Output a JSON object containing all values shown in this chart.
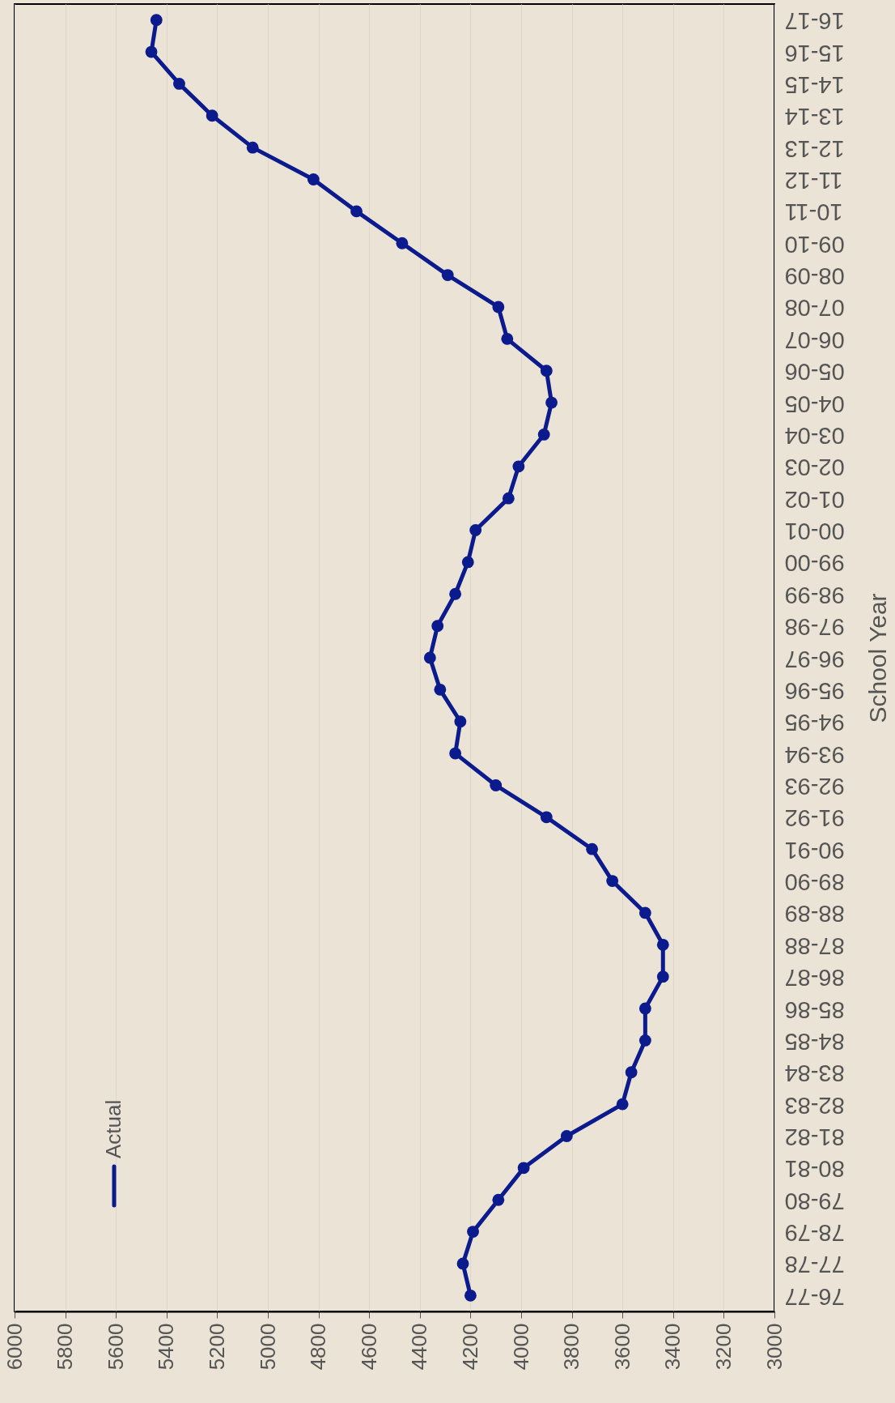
{
  "chart_data": {
    "type": "line",
    "orientation": "horizontal",
    "ylabel": "School Year",
    "categories": [
      "16-17",
      "15-16",
      "14-15",
      "13-14",
      "12-13",
      "11-12",
      "10-11",
      "09-10",
      "08-09",
      "07-08",
      "06-07",
      "05-06",
      "04-05",
      "03-04",
      "02-03",
      "01-02",
      "00-01",
      "99-00",
      "98-99",
      "97-98",
      "96-97",
      "95-96",
      "94-95",
      "93-94",
      "92-93",
      "91-92",
      "90-91",
      "89-90",
      "88-89",
      "87-88",
      "86-87",
      "85-86",
      "84-85",
      "83-84",
      "82-83",
      "81-82",
      "80-81",
      "79-80",
      "78-79",
      "77-78",
      "76-77"
    ],
    "series": [
      {
        "name": "Actual",
        "color": "#0b1a8c",
        "values": [
          5440,
          5460,
          5350,
          5220,
          5060,
          4820,
          4650,
          4470,
          4290,
          4090,
          4055,
          3900,
          3880,
          3910,
          4010,
          4050,
          4180,
          4210,
          4260,
          4330,
          4360,
          4320,
          4240,
          4260,
          4100,
          3900,
          3720,
          3640,
          3510,
          3440,
          3440,
          3510,
          3510,
          3565,
          3600,
          3820,
          3990,
          4090,
          4190,
          4230,
          4200
        ]
      }
    ],
    "xlim": [
      6000,
      3000
    ],
    "xticks": [
      6000,
      5800,
      5600,
      5400,
      5200,
      5000,
      4800,
      4600,
      4400,
      4200,
      4000,
      3800,
      3600,
      3400,
      3200,
      3000
    ],
    "grid": "x",
    "legend": "bottom left",
    "marker": "circle",
    "line_style": "solid"
  }
}
